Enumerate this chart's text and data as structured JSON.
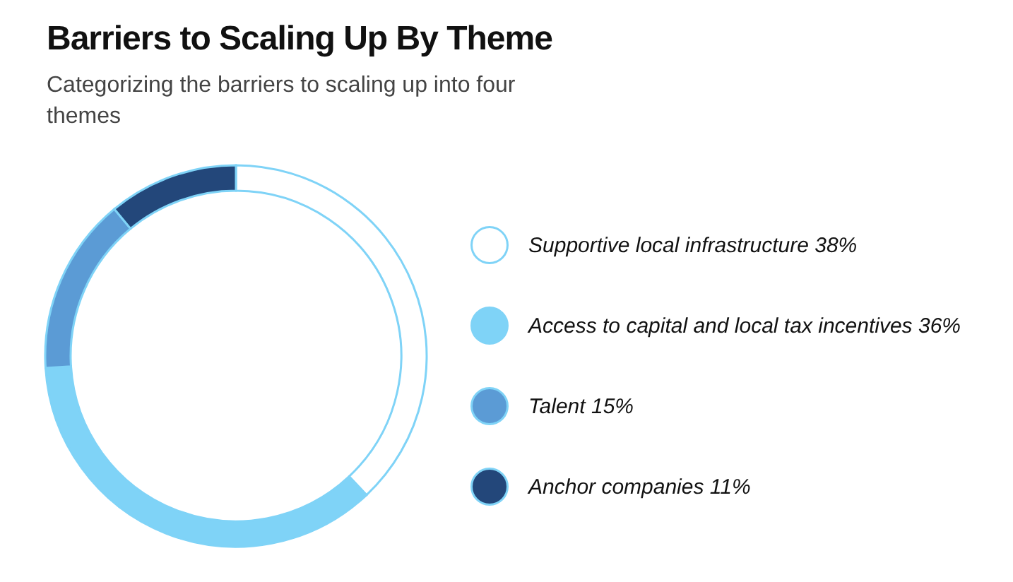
{
  "chart_data": {
    "type": "donut",
    "title": "Barriers to Scaling Up By Theme",
    "subtitle": "Categorizing the barriers to scaling up into four themes",
    "categories": [
      "Supportive local infrastructure 38%",
      "Access to capital and local tax incentives 36%",
      "Talent 15%",
      "Anchor companies 11%"
    ],
    "values": [
      38,
      36,
      15,
      11
    ],
    "colors": [
      "#ffffff",
      "#7fd3f7",
      "#5b9bd5",
      "#23477a"
    ],
    "legend": "right"
  }
}
